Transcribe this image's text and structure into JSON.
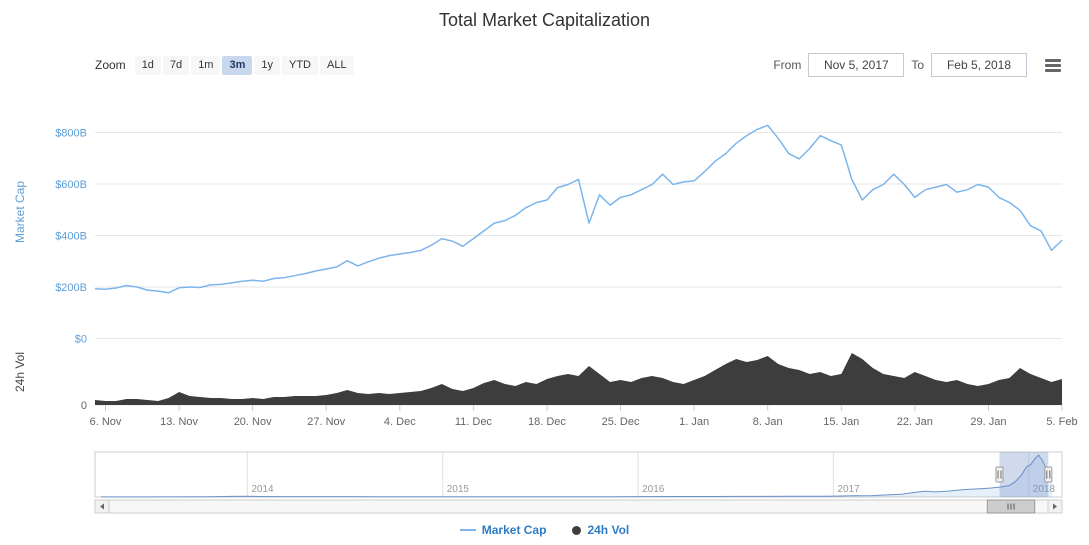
{
  "title": "Total Market Capitalization",
  "toolbar": {
    "zoom_label": "Zoom",
    "buttons": [
      {
        "label": "1d",
        "selected": false
      },
      {
        "label": "7d",
        "selected": false
      },
      {
        "label": "1m",
        "selected": false
      },
      {
        "label": "3m",
        "selected": true
      },
      {
        "label": "1y",
        "selected": false
      },
      {
        "label": "YTD",
        "selected": false
      },
      {
        "label": "ALL",
        "selected": false
      }
    ],
    "from_label": "From",
    "from_value": "Nov 5, 2017",
    "to_label": "To",
    "to_value": "Feb 5, 2018"
  },
  "legend": [
    {
      "label": "Market Cap",
      "type": "line",
      "color": "#7cb5ec"
    },
    {
      "label": "24h Vol",
      "type": "dot",
      "color": "#3d3d3d"
    }
  ],
  "chart_data": {
    "type": "line",
    "title": "Total Market Capitalization",
    "x_axis": {
      "start_date": "2017-11-05",
      "end_date": "2018-02-05",
      "span_days": 92,
      "ticks": [
        {
          "day": 1,
          "label": "6. Nov"
        },
        {
          "day": 8,
          "label": "13. Nov"
        },
        {
          "day": 15,
          "label": "20. Nov"
        },
        {
          "day": 22,
          "label": "27. Nov"
        },
        {
          "day": 29,
          "label": "4. Dec"
        },
        {
          "day": 36,
          "label": "11. Dec"
        },
        {
          "day": 43,
          "label": "18. Dec"
        },
        {
          "day": 50,
          "label": "25. Dec"
        },
        {
          "day": 57,
          "label": "1. Jan"
        },
        {
          "day": 64,
          "label": "8. Jan"
        },
        {
          "day": 71,
          "label": "15. Jan"
        },
        {
          "day": 78,
          "label": "22. Jan"
        },
        {
          "day": 85,
          "label": "29. Jan"
        },
        {
          "day": 92,
          "label": "5. Feb"
        }
      ]
    },
    "y_axis_market_cap": {
      "title": "Market Cap",
      "unit": "USD billions",
      "range": [
        0,
        945
      ],
      "ticks": [
        {
          "value": 0,
          "label": "$0"
        },
        {
          "value": 200,
          "label": "$200B"
        },
        {
          "value": 400,
          "label": "$400B"
        },
        {
          "value": 600,
          "label": "$600B"
        },
        {
          "value": 800,
          "label": "$800B"
        }
      ]
    },
    "y_axis_volume": {
      "title": "24h Vol",
      "unit": "USD billions",
      "range": [
        0,
        65
      ],
      "ticks": [
        {
          "value": 0,
          "label": "0"
        }
      ]
    },
    "series": [
      {
        "name": "Market Cap",
        "type": "line",
        "color": "#7cb5ec",
        "unit": "USD billions",
        "daily_values_from_start": [
          193,
          191,
          196,
          206,
          200,
          188,
          184,
          178,
          197,
          200,
          198,
          208,
          210,
          216,
          222,
          226,
          222,
          233,
          236,
          244,
          252,
          262,
          270,
          278,
          302,
          282,
          298,
          312,
          322,
          328,
          334,
          342,
          362,
          388,
          378,
          358,
          388,
          418,
          448,
          458,
          478,
          508,
          528,
          538,
          586,
          598,
          618,
          448,
          558,
          518,
          548,
          558,
          578,
          598,
          638,
          598,
          608,
          612,
          648,
          688,
          718,
          758,
          788,
          812,
          828,
          778,
          718,
          698,
          738,
          788,
          768,
          752,
          618,
          538,
          578,
          598,
          638,
          598,
          548,
          578,
          588,
          598,
          568,
          578,
          598,
          588,
          548,
          528,
          498,
          438,
          418,
          342,
          382
        ]
      },
      {
        "name": "24h Vol",
        "type": "area",
        "color": "#3d3d3d",
        "unit": "USD billions",
        "daily_values_from_start": [
          5,
          4,
          4,
          6,
          6,
          5,
          4,
          7,
          13,
          9,
          8,
          7,
          7,
          6,
          6,
          7,
          6,
          8,
          8,
          9,
          9,
          9,
          10,
          12,
          15,
          12,
          11,
          12,
          11,
          12,
          13,
          14,
          17,
          21,
          16,
          14,
          17,
          22,
          25,
          21,
          19,
          23,
          21,
          26,
          29,
          31,
          29,
          39,
          31,
          23,
          25,
          23,
          27,
          29,
          27,
          23,
          21,
          25,
          29,
          35,
          41,
          46,
          43,
          45,
          49,
          41,
          37,
          35,
          31,
          33,
          29,
          31,
          52,
          46,
          37,
          31,
          29,
          27,
          33,
          29,
          25,
          23,
          25,
          21,
          19,
          21,
          25,
          27,
          37,
          31,
          27,
          23,
          26
        ]
      }
    ],
    "navigator": {
      "year_labels": [
        "2014",
        "2015",
        "2016",
        "2017",
        "2018"
      ],
      "time_range": [
        2013.22,
        2018.17
      ],
      "selected_range": [
        2017.85,
        2018.1
      ],
      "points": [
        [
          2013.25,
          1
        ],
        [
          2013.5,
          1.5
        ],
        [
          2013.8,
          3
        ],
        [
          2013.92,
          12
        ],
        [
          2014.0,
          13
        ],
        [
          2014.06,
          10
        ],
        [
          2014.15,
          8
        ],
        [
          2014.3,
          8
        ],
        [
          2014.5,
          7
        ],
        [
          2014.7,
          6
        ],
        [
          2014.9,
          5.5
        ],
        [
          2015.0,
          4.5
        ],
        [
          2015.15,
          4
        ],
        [
          2015.3,
          4
        ],
        [
          2015.5,
          4.5
        ],
        [
          2015.7,
          4.5
        ],
        [
          2015.85,
          6
        ],
        [
          2016.0,
          8
        ],
        [
          2016.2,
          9
        ],
        [
          2016.4,
          10
        ],
        [
          2016.5,
          12.5
        ],
        [
          2016.6,
          12
        ],
        [
          2016.8,
          13
        ],
        [
          2016.95,
          15
        ],
        [
          2017.0,
          18
        ],
        [
          2017.1,
          24
        ],
        [
          2017.2,
          28
        ],
        [
          2017.35,
          55
        ],
        [
          2017.42,
          95
        ],
        [
          2017.47,
          115
        ],
        [
          2017.52,
          100
        ],
        [
          2017.58,
          115
        ],
        [
          2017.65,
          140
        ],
        [
          2017.7,
          155
        ],
        [
          2017.75,
          165
        ],
        [
          2017.8,
          175
        ],
        [
          2017.85,
          195
        ],
        [
          2017.9,
          225
        ],
        [
          2017.93,
          300
        ],
        [
          2017.96,
          420
        ],
        [
          2017.99,
          600
        ],
        [
          2018.01,
          640
        ],
        [
          2018.03,
          750
        ],
        [
          2018.05,
          828
        ],
        [
          2018.07,
          720
        ],
        [
          2018.09,
          560
        ],
        [
          2018.11,
          420
        ],
        [
          2018.12,
          385
        ]
      ]
    }
  }
}
